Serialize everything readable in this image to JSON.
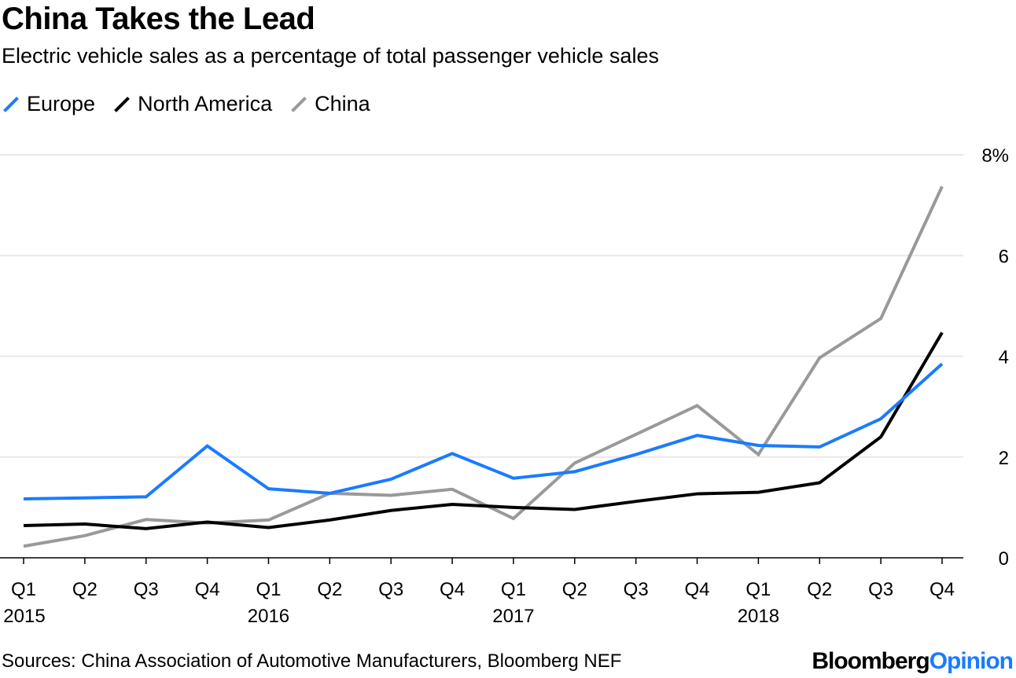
{
  "chart_data": {
    "type": "line",
    "title": "China Takes the Lead",
    "subtitle": "Electric vehicle sales as a percentage of total passenger vehicle sales",
    "categories": [
      "Q1",
      "Q2",
      "Q3",
      "Q4",
      "Q1",
      "Q2",
      "Q3",
      "Q4",
      "Q1",
      "Q2",
      "Q3",
      "Q4",
      "Q1",
      "Q2",
      "Q3",
      "Q4"
    ],
    "years": [
      "2015",
      "",
      "",
      "",
      "2016",
      "",
      "",
      "",
      "2017",
      "",
      "",
      "",
      "2018",
      "",
      "",
      ""
    ],
    "ylim": [
      0,
      8
    ],
    "yticks": [
      {
        "v": 0,
        "label": "0"
      },
      {
        "v": 2,
        "label": "2"
      },
      {
        "v": 4,
        "label": "4"
      },
      {
        "v": 6,
        "label": "6"
      },
      {
        "v": 8,
        "label": "8%"
      }
    ],
    "grid": true,
    "legend_position": "top-left",
    "series": [
      {
        "name": "Europe",
        "color": "#1a7bff",
        "values": [
          1.17,
          1.19,
          1.21,
          2.22,
          1.37,
          1.28,
          1.56,
          2.07,
          1.58,
          1.71,
          2.05,
          2.43,
          2.23,
          2.2,
          2.76,
          3.85
        ]
      },
      {
        "name": "North America",
        "color": "#000000",
        "values": [
          0.64,
          0.67,
          0.58,
          0.71,
          0.6,
          0.75,
          0.94,
          1.06,
          1.0,
          0.96,
          1.12,
          1.27,
          1.3,
          1.49,
          2.4,
          4.47
        ]
      },
      {
        "name": "China",
        "color": "#999999",
        "values": [
          0.23,
          0.44,
          0.76,
          0.69,
          0.75,
          1.28,
          1.24,
          1.36,
          0.78,
          1.88,
          2.45,
          3.02,
          2.05,
          3.97,
          4.75,
          7.37
        ]
      }
    ]
  },
  "source": "Sources: China Association of Automotive Manufacturers, Bloomberg NEF",
  "logo": {
    "part1": "Bloomberg",
    "part2": "Opinion"
  }
}
